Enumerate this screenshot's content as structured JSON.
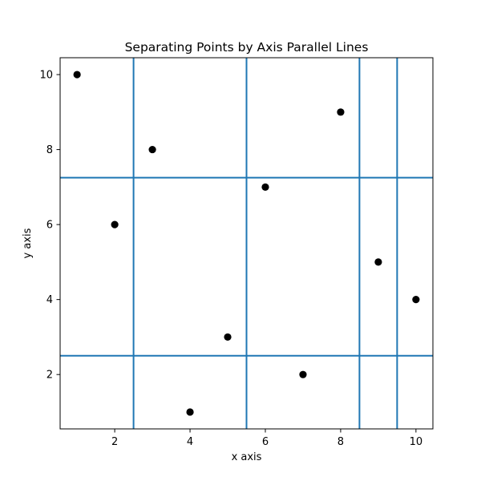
{
  "chart_data": {
    "type": "scatter",
    "title": "Separating Points by Axis Parallel Lines",
    "xlabel": "x axis",
    "ylabel": "y axis",
    "xlim": [
      0.55,
      10.45
    ],
    "ylim": [
      0.55,
      10.45
    ],
    "xticks": [
      2,
      4,
      6,
      8,
      10
    ],
    "yticks": [
      2,
      4,
      6,
      8,
      10
    ],
    "grid": false,
    "points": [
      {
        "x": 1,
        "y": 10
      },
      {
        "x": 2,
        "y": 6
      },
      {
        "x": 3,
        "y": 8
      },
      {
        "x": 4,
        "y": 1
      },
      {
        "x": 5,
        "y": 3
      },
      {
        "x": 6,
        "y": 7
      },
      {
        "x": 7,
        "y": 2
      },
      {
        "x": 8,
        "y": 9
      },
      {
        "x": 9,
        "y": 5
      },
      {
        "x": 10,
        "y": 4
      }
    ],
    "vertical_lines": [
      2.5,
      5.5,
      8.5,
      9.5
    ],
    "horizontal_lines": [
      2.5,
      7.25
    ],
    "point_color": "#000000",
    "line_color": "#1f77b4"
  }
}
